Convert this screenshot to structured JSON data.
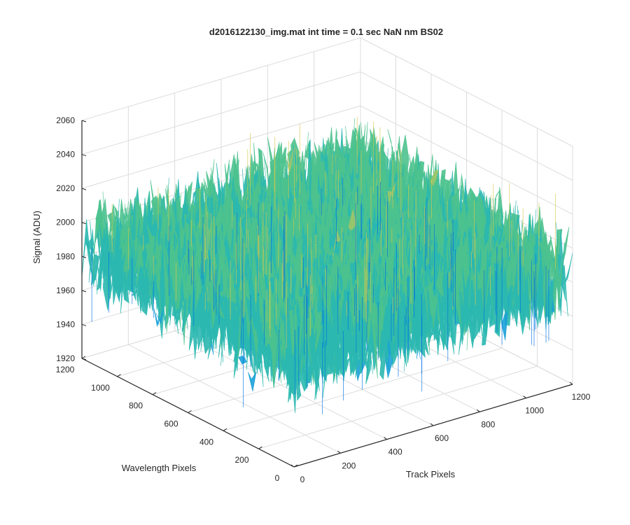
{
  "chart_data": {
    "type": "surface",
    "title": "d2016122130_img.mat int time = 0.1 sec  NaN nm BS02",
    "xlabel": "Track Pixels",
    "ylabel": "Wavelength Pixels",
    "zlabel": "Signal (ADU)",
    "xlim": [
      0,
      1200
    ],
    "ylim": [
      0,
      1200
    ],
    "zlim": [
      1920,
      2060
    ],
    "x_ticks": [
      "0",
      "200",
      "400",
      "600",
      "800",
      "1000",
      "1200"
    ],
    "y_ticks": [
      "0",
      "200",
      "400",
      "600",
      "800",
      "1000",
      "1200"
    ],
    "z_ticks": [
      "1920",
      "1940",
      "1960",
      "1980",
      "2000",
      "2020",
      "2040",
      "2060"
    ],
    "grid": true,
    "colormap": "parula",
    "surface_summary": {
      "mean_signal": 1985,
      "peak_region": [
        2030,
        2055
      ],
      "trough_region": [
        1925,
        1945
      ]
    },
    "surface_colors": [
      "#0072e0",
      "#1aa0d8",
      "#2bb8b0",
      "#4cc28e",
      "#9ec56a",
      "#d6c84c"
    ]
  }
}
